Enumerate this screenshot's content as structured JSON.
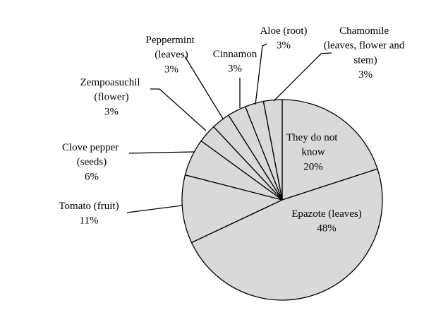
{
  "chart_data": {
    "type": "pie",
    "categories": [
      "They do not know",
      "Epazote (leaves)",
      "Tomato (fruit)",
      "Clove pepper (seeds)",
      "Zempoasuchil (flower)",
      "Peppermint (leaves)",
      "Cinnamon",
      "Aloe (root)",
      "Chamomile (leaves, flower and stem)"
    ],
    "values": [
      20,
      48,
      11,
      6,
      3,
      3,
      3,
      3,
      3
    ],
    "value_labels": [
      "20%",
      "48%",
      "11%",
      "6%",
      "3%",
      "3%",
      "3%",
      "3%",
      "3%"
    ],
    "color": "#d9d9d9"
  }
}
